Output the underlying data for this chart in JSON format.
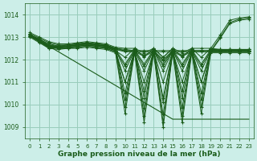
{
  "title": "Graphe pression niveau de la mer (hPa)",
  "bg_color": "#cceee8",
  "grid_color": "#99ccbb",
  "line_color": "#1a5c1a",
  "xlim": [
    -0.5,
    23.5
  ],
  "ylim": [
    1008.5,
    1014.5
  ],
  "yticks": [
    1009,
    1010,
    1011,
    1012,
    1013,
    1014
  ],
  "xticks": [
    0,
    1,
    2,
    3,
    4,
    5,
    6,
    7,
    8,
    9,
    10,
    11,
    12,
    13,
    14,
    15,
    16,
    17,
    18,
    19,
    20,
    21,
    22,
    23
  ],
  "series": [
    [
      1013.1,
      1012.85,
      1012.55,
      1012.6,
      1012.65,
      1012.7,
      1012.75,
      1012.7,
      1012.65,
      1012.5,
      1012.45,
      1012.4,
      1012.4,
      1012.4,
      1012.4,
      1012.4,
      1012.4,
      1012.4,
      1012.4,
      1012.4,
      1012.4,
      1012.4,
      1012.4,
      1012.4
    ],
    [
      1013.05,
      1012.8,
      1012.5,
      1012.55,
      1012.6,
      1012.65,
      1012.7,
      1012.65,
      1012.6,
      1012.45,
      1012.4,
      1012.35,
      1012.35,
      1012.35,
      1012.35,
      1012.35,
      1012.35,
      1012.35,
      1012.35,
      1012.35,
      1012.35,
      1012.35,
      1012.35,
      1012.35
    ],
    [
      1013.1,
      1012.85,
      1012.6,
      1012.5,
      1012.55,
      1012.6,
      1012.65,
      1012.6,
      1012.55,
      1012.4,
      1012.1,
      1012.5,
      1012.1,
      1012.5,
      1012.1,
      1012.5,
      1012.1,
      1012.5,
      1012.1,
      1012.5,
      1012.45,
      1012.45,
      1012.45,
      1012.45
    ],
    [
      1013.1,
      1012.9,
      1012.65,
      1012.55,
      1012.6,
      1012.65,
      1012.7,
      1012.65,
      1012.6,
      1012.45,
      1011.8,
      1012.45,
      1011.8,
      1012.45,
      1011.8,
      1012.45,
      1011.8,
      1012.45,
      1011.8,
      1012.45,
      1012.45,
      1012.45,
      1012.45,
      1012.45
    ],
    [
      1013.1,
      1012.85,
      1012.6,
      1012.5,
      1012.55,
      1012.6,
      1012.65,
      1012.6,
      1012.55,
      1012.4,
      1011.7,
      1012.4,
      1011.7,
      1012.4,
      1011.7,
      1012.4,
      1011.7,
      1012.4,
      1011.7,
      1012.4,
      1012.4,
      1012.4,
      1012.4,
      1012.4
    ],
    [
      1013.1,
      1012.85,
      1012.6,
      1012.55,
      1012.6,
      1012.65,
      1012.7,
      1012.65,
      1012.6,
      1012.45,
      1011.5,
      1012.4,
      1011.5,
      1012.4,
      1011.5,
      1012.4,
      1011.5,
      1012.4,
      1011.5,
      1012.4,
      1012.4,
      1012.45,
      1012.4,
      1012.45
    ],
    [
      1013.05,
      1012.8,
      1012.55,
      1012.5,
      1012.5,
      1012.55,
      1012.6,
      1012.55,
      1012.5,
      1012.35,
      1011.0,
      1012.35,
      1011.0,
      1012.35,
      1011.0,
      1012.35,
      1011.0,
      1012.35,
      1011.0,
      1012.35,
      1012.35,
      1012.4,
      1012.4,
      1012.4
    ],
    [
      1013.1,
      1012.9,
      1012.65,
      1012.6,
      1012.65,
      1012.7,
      1012.75,
      1012.7,
      1012.65,
      1012.5,
      1010.5,
      1012.45,
      1010.3,
      1012.45,
      1010.1,
      1012.45,
      1010.3,
      1012.45,
      1010.5,
      1012.45,
      1012.45,
      1012.45,
      1012.45,
      1012.45
    ],
    [
      1013.1,
      1012.85,
      1012.6,
      1012.55,
      1012.6,
      1012.65,
      1012.7,
      1012.65,
      1012.6,
      1012.45,
      1010.2,
      1012.4,
      1009.85,
      1012.4,
      1009.55,
      1012.4,
      1009.85,
      1012.4,
      1010.2,
      1012.4,
      1012.4,
      1012.4,
      1012.4,
      1012.4
    ],
    [
      1013.05,
      1012.8,
      1012.55,
      1012.5,
      1012.5,
      1012.55,
      1012.6,
      1012.55,
      1012.5,
      1012.35,
      1009.9,
      1012.35,
      1009.5,
      1012.35,
      1009.2,
      1012.35,
      1009.5,
      1012.35,
      1009.9,
      1012.35,
      1012.35,
      1012.35,
      1012.35,
      1012.35
    ],
    [
      1013.0,
      1012.75,
      1012.5,
      1012.45,
      1012.5,
      1012.5,
      1012.55,
      1012.5,
      1012.45,
      1012.3,
      1009.6,
      1012.3,
      1009.2,
      1012.3,
      1009.0,
      1012.3,
      1009.2,
      1012.3,
      1009.6,
      1012.3,
      1012.3,
      1012.3,
      1012.3,
      1012.3
    ],
    [
      1013.2,
      1013.0,
      1012.8,
      1012.7,
      1012.7,
      1012.75,
      1012.8,
      1012.75,
      1012.7,
      1012.55,
      1012.5,
      1012.5,
      1012.3,
      1012.5,
      1012.1,
      1012.5,
      1012.3,
      1012.5,
      1012.5,
      1012.5,
      1013.1,
      1013.75,
      1013.85,
      1013.9
    ],
    [
      1013.15,
      1012.95,
      1012.75,
      1012.65,
      1012.65,
      1012.7,
      1012.75,
      1012.7,
      1012.65,
      1012.5,
      1012.4,
      1012.4,
      1012.2,
      1012.4,
      1012.0,
      1012.4,
      1012.2,
      1012.4,
      1012.4,
      1012.4,
      1013.0,
      1013.65,
      1013.8,
      1013.85
    ],
    [
      1013.1,
      1012.9,
      1012.7,
      1012.6,
      1012.6,
      1012.65,
      1012.7,
      1012.65,
      1012.6,
      1012.45,
      1012.35,
      1012.35,
      1012.15,
      1012.35,
      1011.95,
      1012.35,
      1012.15,
      1012.35,
      1012.35,
      1012.35,
      1012.95,
      1013.6,
      1013.75,
      1013.8
    ],
    [
      1013.05,
      1012.8,
      1012.6,
      1012.5,
      1012.55,
      1012.6,
      1012.65,
      1012.6,
      1012.55,
      1012.4,
      1011.0,
      1012.4,
      1010.6,
      1012.4,
      1010.3,
      1012.4,
      1010.6,
      1012.4,
      1011.0,
      1012.4,
      1012.4,
      1012.4,
      1012.4,
      1012.4
    ]
  ],
  "diagonal_line": [
    1013.1,
    1012.85,
    1012.6,
    1012.35,
    1012.1,
    1011.85,
    1011.6,
    1011.35,
    1011.1,
    1010.85,
    1010.6,
    1010.35,
    1010.1,
    1009.85,
    1009.6,
    1009.35,
    1009.35,
    1009.35,
    1009.35,
    1009.35,
    1009.35,
    1009.35,
    1009.35,
    1009.35
  ]
}
